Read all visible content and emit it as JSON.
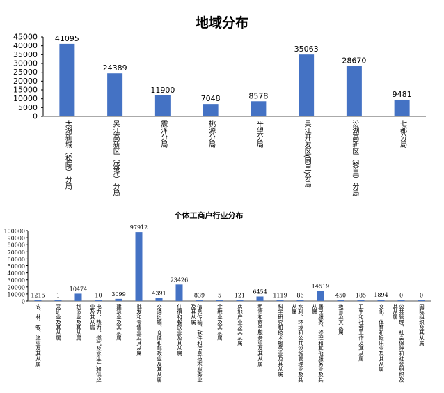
{
  "chart_data": [
    {
      "type": "bar",
      "title": "地域分布",
      "categories": [
        "太湖新城（松陵）分局",
        "吴江高新区（盛泽）分局",
        "震泽分局",
        "桃源分局",
        "平望分局",
        "吴江开发区(同里)分局",
        "汾湖高新区（黎里）分局",
        "七都分局"
      ],
      "values": [
        41095,
        24389,
        11900,
        7048,
        8578,
        35063,
        28670,
        9481
      ],
      "ylim": [
        0,
        45000
      ],
      "yticks": [
        0,
        5000,
        10000,
        15000,
        20000,
        25000,
        30000,
        35000,
        40000,
        45000
      ],
      "grid": false,
      "color": "#4472C4"
    },
    {
      "type": "bar",
      "title": "个体工商户行业分布",
      "categories": [
        "农、林、牧、渔业及其从属",
        "采矿业及其从属",
        "制造业及其从属",
        "电力、热力、燃气及水生产和供应业及其从属",
        "建筑业及其从属",
        "批发和零售业及其从属",
        "交通运输、仓储和邮政业及其从属",
        "住宿和餐饮业及其从属",
        "信息传输、软件和信息技术服务业及其从属",
        "金融业及其从属",
        "房地产业及其从属",
        "租赁和商务服务业及其从属",
        "科学研究和技术服务业及其从属",
        "水利、环境和公共设施管理业及其从属",
        "居民服务、修理和其他服务业及其从属",
        "教育及其从属",
        "卫生和社会工作及其从属",
        "文化、体育和娱乐业及其从属",
        "公共管理、社会保障和社会组织及其从属",
        "国际组织及其从属"
      ],
      "values": [
        1215,
        1,
        10474,
        10,
        3099,
        97912,
        4391,
        23426,
        839,
        5,
        121,
        6454,
        1119,
        86,
        14519,
        450,
        185,
        1894,
        0,
        0
      ],
      "ylim": [
        0,
        100000
      ],
      "yticks": [
        0,
        10000,
        20000,
        30000,
        40000,
        50000,
        60000,
        70000,
        80000,
        90000,
        100000
      ],
      "grid": false,
      "color": "#4472C4"
    }
  ]
}
